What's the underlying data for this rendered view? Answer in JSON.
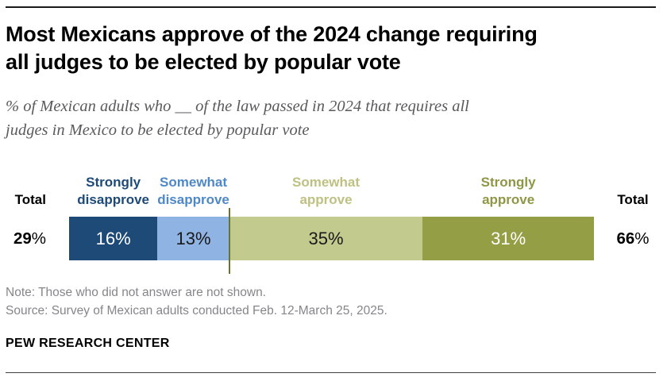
{
  "header": {
    "title_lines": [
      "Most Mexicans approve of the 2024 change requiring",
      "all judges to be elected by popular vote"
    ],
    "subtitle_lines": [
      "% of Mexican adults who __ of the law passed in 2024 that requires all",
      "judges in Mexico to be elected by popular vote"
    ]
  },
  "chart_data": {
    "type": "bar",
    "subtype": "horizontal-stacked",
    "categories": [
      "Strongly disapprove",
      "Somewhat disapprove",
      "Somewhat approve",
      "Strongly approve"
    ],
    "values": [
      16,
      13,
      35,
      31
    ],
    "value_suffix": "%",
    "bar_colors": [
      "#1e4a78",
      "#8fb3e2",
      "#c3ca8e",
      "#949e44"
    ],
    "header_label_colors": [
      "#1e4a78",
      "#4f88c6",
      "#bfc183",
      "#8f9645"
    ],
    "value_text_colors": [
      "#ffffff",
      "#1a1a1a",
      "#1a1a1a",
      "#ffffff"
    ],
    "divider_after_index": 1,
    "divider_color": "#68752c",
    "totals": {
      "left_label": "Total",
      "left_value": "29",
      "right_label": "Total",
      "right_value": "66",
      "pct_sign": "%"
    },
    "axis_note": "values sum to 95; nonresponse not shown"
  },
  "footer": {
    "note": "Note: Those who did not answer are not shown.",
    "source": "Source: Survey of Mexican adults conducted Feb. 12-March 25, 2025.",
    "brand": "PEW RESEARCH CENTER"
  }
}
